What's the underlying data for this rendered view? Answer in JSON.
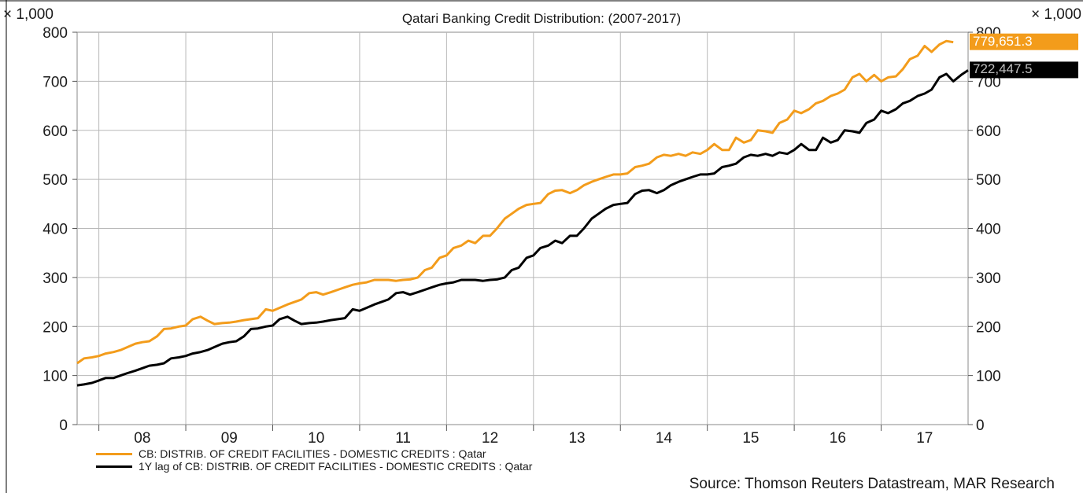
{
  "chart_data": {
    "type": "line",
    "title": "Qatari Banking Credit Distribution: (2007-2017)",
    "unit_left": "× 1,000",
    "unit_right": "× 1,000",
    "x_ticks": [
      "08",
      "09",
      "10",
      "11",
      "12",
      "13",
      "14",
      "15",
      "16",
      "17"
    ],
    "y_ticks": [
      0,
      100,
      200,
      300,
      400,
      500,
      600,
      700,
      800
    ],
    "ylim": [
      0,
      800
    ],
    "xlim": [
      2007.25,
      2017.5
    ],
    "grid": true,
    "legend_position": "bottom-left",
    "series": [
      {
        "name": "CB: DISTRIB. OF CREDIT FACILITIES - DOMESTIC CREDITS : Qatar",
        "color": "#f39c1b",
        "last_value_label": "779,651.3",
        "points": [
          [
            2007.25,
            125
          ],
          [
            2007.33,
            135
          ],
          [
            2007.42,
            137
          ],
          [
            2007.5,
            140
          ],
          [
            2007.58,
            145
          ],
          [
            2007.67,
            148
          ],
          [
            2007.75,
            152
          ],
          [
            2007.83,
            158
          ],
          [
            2007.92,
            165
          ],
          [
            2008.0,
            168
          ],
          [
            2008.08,
            170
          ],
          [
            2008.17,
            180
          ],
          [
            2008.25,
            195
          ],
          [
            2008.33,
            196
          ],
          [
            2008.42,
            200
          ],
          [
            2008.5,
            202
          ],
          [
            2008.58,
            215
          ],
          [
            2008.67,
            220
          ],
          [
            2008.75,
            212
          ],
          [
            2008.83,
            205
          ],
          [
            2008.92,
            207
          ],
          [
            2009.0,
            208
          ],
          [
            2009.08,
            210
          ],
          [
            2009.17,
            213
          ],
          [
            2009.25,
            215
          ],
          [
            2009.33,
            217
          ],
          [
            2009.42,
            235
          ],
          [
            2009.5,
            232
          ],
          [
            2009.58,
            238
          ],
          [
            2009.67,
            245
          ],
          [
            2009.75,
            250
          ],
          [
            2009.83,
            255
          ],
          [
            2009.92,
            268
          ],
          [
            2010.0,
            270
          ],
          [
            2010.08,
            265
          ],
          [
            2010.17,
            270
          ],
          [
            2010.25,
            275
          ],
          [
            2010.33,
            280
          ],
          [
            2010.42,
            285
          ],
          [
            2010.5,
            288
          ],
          [
            2010.58,
            290
          ],
          [
            2010.67,
            295
          ],
          [
            2010.75,
            295
          ],
          [
            2010.83,
            295
          ],
          [
            2010.92,
            293
          ],
          [
            2011.0,
            295
          ],
          [
            2011.08,
            296
          ],
          [
            2011.17,
            300
          ],
          [
            2011.25,
            315
          ],
          [
            2011.33,
            320
          ],
          [
            2011.42,
            340
          ],
          [
            2011.5,
            345
          ],
          [
            2011.58,
            360
          ],
          [
            2011.67,
            365
          ],
          [
            2011.75,
            375
          ],
          [
            2011.83,
            370
          ],
          [
            2011.92,
            385
          ],
          [
            2012.0,
            385
          ],
          [
            2012.08,
            400
          ],
          [
            2012.17,
            420
          ],
          [
            2012.25,
            430
          ],
          [
            2012.33,
            440
          ],
          [
            2012.42,
            448
          ],
          [
            2012.5,
            450
          ],
          [
            2012.58,
            452
          ],
          [
            2012.67,
            470
          ],
          [
            2012.75,
            477
          ],
          [
            2012.83,
            478
          ],
          [
            2012.92,
            472
          ],
          [
            2013.0,
            478
          ],
          [
            2013.08,
            488
          ],
          [
            2013.17,
            495
          ],
          [
            2013.25,
            500
          ],
          [
            2013.33,
            505
          ],
          [
            2013.42,
            510
          ],
          [
            2013.5,
            510
          ],
          [
            2013.58,
            512
          ],
          [
            2013.67,
            525
          ],
          [
            2013.75,
            528
          ],
          [
            2013.83,
            532
          ],
          [
            2013.92,
            545
          ],
          [
            2014.0,
            550
          ],
          [
            2014.08,
            548
          ],
          [
            2014.17,
            552
          ],
          [
            2014.25,
            548
          ],
          [
            2014.33,
            555
          ],
          [
            2014.42,
            552
          ],
          [
            2014.5,
            560
          ],
          [
            2014.58,
            572
          ],
          [
            2014.67,
            560
          ],
          [
            2014.75,
            560
          ],
          [
            2014.83,
            585
          ],
          [
            2014.92,
            575
          ],
          [
            2015.0,
            580
          ],
          [
            2015.08,
            600
          ],
          [
            2015.17,
            598
          ],
          [
            2015.25,
            595
          ],
          [
            2015.33,
            615
          ],
          [
            2015.42,
            622
          ],
          [
            2015.5,
            640
          ],
          [
            2015.58,
            635
          ],
          [
            2015.67,
            643
          ],
          [
            2015.75,
            655
          ],
          [
            2015.83,
            660
          ],
          [
            2015.92,
            670
          ],
          [
            2016.0,
            675
          ],
          [
            2016.08,
            683
          ],
          [
            2016.17,
            708
          ],
          [
            2016.25,
            715
          ],
          [
            2016.33,
            700
          ],
          [
            2016.42,
            713
          ],
          [
            2016.5,
            700
          ],
          [
            2016.58,
            708
          ],
          [
            2016.67,
            710
          ],
          [
            2016.75,
            725
          ],
          [
            2016.83,
            745
          ],
          [
            2016.92,
            752
          ],
          [
            2017.0,
            772
          ],
          [
            2017.08,
            760
          ],
          [
            2017.17,
            775
          ],
          [
            2017.25,
            782
          ],
          [
            2017.33,
            779.7
          ]
        ]
      },
      {
        "name": "1Y lag of CB: DISTRIB. OF CREDIT FACILITIES - DOMESTIC CREDITS : Qatar",
        "color": "#000000",
        "last_value_label": "722,447.5",
        "points": [
          [
            2007.25,
            80
          ],
          [
            2007.33,
            82
          ],
          [
            2007.42,
            85
          ],
          [
            2007.5,
            90
          ],
          [
            2007.58,
            95
          ],
          [
            2007.67,
            95
          ],
          [
            2007.75,
            100
          ],
          [
            2007.83,
            105
          ],
          [
            2007.92,
            110
          ],
          [
            2008.0,
            115
          ],
          [
            2008.08,
            120
          ],
          [
            2008.17,
            122
          ],
          [
            2008.25,
            125
          ],
          [
            2008.33,
            135
          ],
          [
            2008.42,
            137
          ],
          [
            2008.5,
            140
          ],
          [
            2008.58,
            145
          ],
          [
            2008.67,
            148
          ],
          [
            2008.75,
            152
          ],
          [
            2008.83,
            158
          ],
          [
            2008.92,
            165
          ],
          [
            2009.0,
            168
          ],
          [
            2009.08,
            170
          ],
          [
            2009.17,
            180
          ],
          [
            2009.25,
            195
          ],
          [
            2009.33,
            196
          ],
          [
            2009.42,
            200
          ],
          [
            2009.5,
            202
          ],
          [
            2009.58,
            215
          ],
          [
            2009.67,
            220
          ],
          [
            2009.75,
            212
          ],
          [
            2009.83,
            205
          ],
          [
            2009.92,
            207
          ],
          [
            2010.0,
            208
          ],
          [
            2010.08,
            210
          ],
          [
            2010.17,
            213
          ],
          [
            2010.25,
            215
          ],
          [
            2010.33,
            217
          ],
          [
            2010.42,
            235
          ],
          [
            2010.5,
            232
          ],
          [
            2010.58,
            238
          ],
          [
            2010.67,
            245
          ],
          [
            2010.75,
            250
          ],
          [
            2010.83,
            255
          ],
          [
            2010.92,
            268
          ],
          [
            2011.0,
            270
          ],
          [
            2011.08,
            265
          ],
          [
            2011.17,
            270
          ],
          [
            2011.25,
            275
          ],
          [
            2011.33,
            280
          ],
          [
            2011.42,
            285
          ],
          [
            2011.5,
            288
          ],
          [
            2011.58,
            290
          ],
          [
            2011.67,
            295
          ],
          [
            2011.75,
            295
          ],
          [
            2011.83,
            295
          ],
          [
            2011.92,
            293
          ],
          [
            2012.0,
            295
          ],
          [
            2012.08,
            296
          ],
          [
            2012.17,
            300
          ],
          [
            2012.25,
            315
          ],
          [
            2012.33,
            320
          ],
          [
            2012.42,
            340
          ],
          [
            2012.5,
            345
          ],
          [
            2012.58,
            360
          ],
          [
            2012.67,
            365
          ],
          [
            2012.75,
            375
          ],
          [
            2012.83,
            370
          ],
          [
            2012.92,
            385
          ],
          [
            2013.0,
            385
          ],
          [
            2013.08,
            400
          ],
          [
            2013.17,
            420
          ],
          [
            2013.25,
            430
          ],
          [
            2013.33,
            440
          ],
          [
            2013.42,
            448
          ],
          [
            2013.5,
            450
          ],
          [
            2013.58,
            452
          ],
          [
            2013.67,
            470
          ],
          [
            2013.75,
            477
          ],
          [
            2013.83,
            478
          ],
          [
            2013.92,
            472
          ],
          [
            2014.0,
            478
          ],
          [
            2014.08,
            488
          ],
          [
            2014.17,
            495
          ],
          [
            2014.25,
            500
          ],
          [
            2014.33,
            505
          ],
          [
            2014.42,
            510
          ],
          [
            2014.5,
            510
          ],
          [
            2014.58,
            512
          ],
          [
            2014.67,
            525
          ],
          [
            2014.75,
            528
          ],
          [
            2014.83,
            532
          ],
          [
            2014.92,
            545
          ],
          [
            2015.0,
            550
          ],
          [
            2015.08,
            548
          ],
          [
            2015.17,
            552
          ],
          [
            2015.25,
            548
          ],
          [
            2015.33,
            555
          ],
          [
            2015.42,
            552
          ],
          [
            2015.5,
            560
          ],
          [
            2015.58,
            572
          ],
          [
            2015.67,
            560
          ],
          [
            2015.75,
            560
          ],
          [
            2015.83,
            585
          ],
          [
            2015.92,
            575
          ],
          [
            2016.0,
            580
          ],
          [
            2016.08,
            600
          ],
          [
            2016.17,
            598
          ],
          [
            2016.25,
            595
          ],
          [
            2016.33,
            615
          ],
          [
            2016.42,
            622
          ],
          [
            2016.5,
            640
          ],
          [
            2016.58,
            635
          ],
          [
            2016.67,
            643
          ],
          [
            2016.75,
            655
          ],
          [
            2016.83,
            660
          ],
          [
            2016.92,
            670
          ],
          [
            2017.0,
            675
          ],
          [
            2017.08,
            683
          ],
          [
            2017.17,
            708
          ],
          [
            2017.25,
            715
          ],
          [
            2017.33,
            700
          ],
          [
            2017.42,
            713
          ],
          [
            2017.5,
            722.4
          ]
        ]
      }
    ],
    "source": "Source: Thomson Reuters Datastream, MAR Research"
  }
}
